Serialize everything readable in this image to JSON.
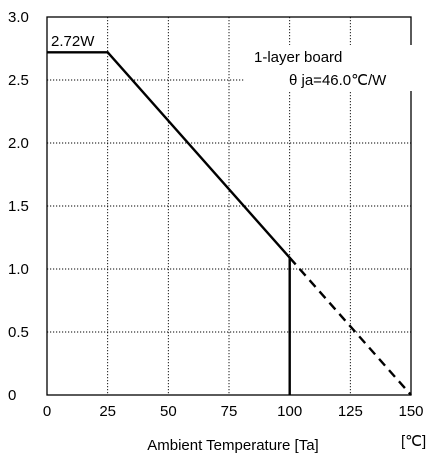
{
  "chart_data": {
    "type": "line",
    "xlim": [
      0,
      150
    ],
    "ylim": [
      0,
      3.0
    ],
    "x_ticks": [
      "0",
      "25",
      "50",
      "75",
      "100",
      "125",
      "150"
    ],
    "y_ticks": [
      "0",
      "0.5",
      "1.0",
      "1.5",
      "2.0",
      "2.5",
      "3.0"
    ],
    "xlabel": "Ambient Temperature [Ta]",
    "x_unit": "[℃]",
    "grid": true,
    "series": [
      {
        "style": "solid",
        "points": [
          [
            0,
            2.72
          ],
          [
            25,
            2.72
          ],
          [
            100,
            1.09
          ],
          [
            100,
            0
          ]
        ]
      },
      {
        "style": "dashed",
        "points": [
          [
            100,
            1.09
          ],
          [
            150,
            0
          ]
        ]
      }
    ],
    "annotations": {
      "peak_label": "2.72W",
      "board_label": "1-layer board",
      "theta_label": "θ ja=46.0℃/W"
    }
  }
}
